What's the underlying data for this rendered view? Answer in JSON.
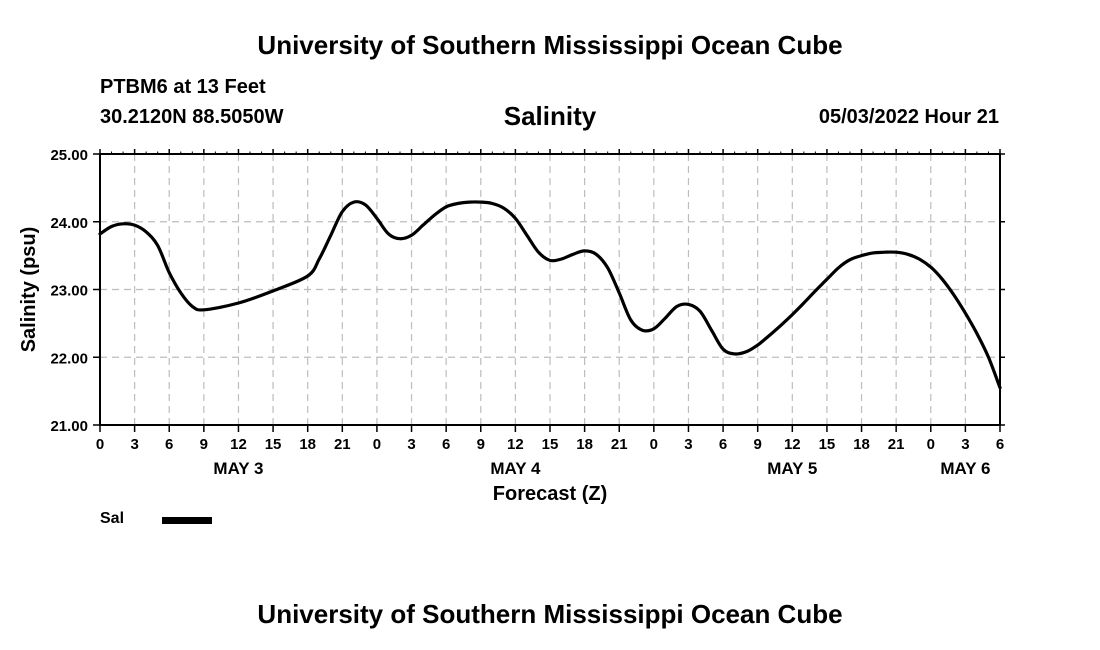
{
  "header": {
    "title": "University of Southern Mississippi Ocean Cube",
    "station": "PTBM6 at 13 Feet",
    "coordinates": "30.2120N  88.5050W",
    "chart_title": "Salinity",
    "datetime": "05/03/2022 Hour 21"
  },
  "footer": {
    "title": "University of Southern Mississippi Ocean Cube"
  },
  "legend": {
    "label": "Sal"
  },
  "chart_data": {
    "type": "line",
    "title": "Salinity",
    "xlabel": "Forecast (Z)",
    "ylabel": "Salinity (psu)",
    "xlim": [
      0,
      78
    ],
    "ylim": [
      21.0,
      25.0
    ],
    "grid": true,
    "yticks": [
      "21.00",
      "22.00",
      "23.00",
      "24.00",
      "25.00"
    ],
    "ytick_values": [
      21,
      22,
      23,
      24,
      25
    ],
    "xtick_hours": [
      0,
      3,
      6,
      9,
      12,
      15,
      18,
      21,
      24,
      27,
      30,
      33,
      36,
      39,
      42,
      45,
      48,
      51,
      54,
      57,
      60,
      63,
      66,
      69,
      72,
      75,
      78
    ],
    "xtick_labels": [
      "0",
      "3",
      "6",
      "9",
      "12",
      "15",
      "18",
      "21",
      "0",
      "3",
      "6",
      "9",
      "12",
      "15",
      "18",
      "21",
      "0",
      "3",
      "6",
      "9",
      "12",
      "15",
      "18",
      "21",
      "0",
      "3",
      "6"
    ],
    "day_labels": [
      {
        "text": "MAY 3",
        "hour": 12
      },
      {
        "text": "MAY 4",
        "hour": 36
      },
      {
        "text": "MAY 5",
        "hour": 60
      },
      {
        "text": "MAY 6",
        "hour": 75
      }
    ],
    "series": [
      {
        "name": "Sal",
        "color": "#000000",
        "x": [
          0,
          1,
          2,
          3,
          4,
          5,
          6,
          7,
          8,
          9,
          12,
          15,
          18,
          19,
          20,
          21,
          22,
          23,
          24,
          25,
          26,
          27,
          28,
          29,
          30,
          31,
          32,
          33,
          34,
          35,
          36,
          37,
          38,
          39,
          40,
          41,
          42,
          43,
          44,
          45,
          46,
          47,
          48,
          49,
          50,
          51,
          52,
          53,
          54,
          55,
          56,
          57,
          58,
          59,
          60,
          61,
          62,
          63,
          64,
          65,
          66,
          67,
          68,
          69,
          70,
          71,
          72,
          73,
          74,
          75,
          76,
          77,
          78
        ],
        "values": [
          23.82,
          23.93,
          23.97,
          23.95,
          23.85,
          23.65,
          23.25,
          22.95,
          22.75,
          22.7,
          22.8,
          22.98,
          23.2,
          23.45,
          23.8,
          24.15,
          24.29,
          24.25,
          24.05,
          23.82,
          23.75,
          23.8,
          23.95,
          24.1,
          24.22,
          24.27,
          24.29,
          24.29,
          24.27,
          24.2,
          24.05,
          23.8,
          23.55,
          23.43,
          23.45,
          23.52,
          23.57,
          23.52,
          23.32,
          22.95,
          22.55,
          22.4,
          22.42,
          22.58,
          22.75,
          22.78,
          22.68,
          22.4,
          22.12,
          22.05,
          22.08,
          22.18,
          22.32,
          22.47,
          22.63,
          22.8,
          22.98,
          23.15,
          23.32,
          23.44,
          23.5,
          23.54,
          23.55,
          23.55,
          23.52,
          23.45,
          23.33,
          23.15,
          22.92,
          22.65,
          22.35,
          22.0,
          21.55
        ]
      }
    ]
  }
}
